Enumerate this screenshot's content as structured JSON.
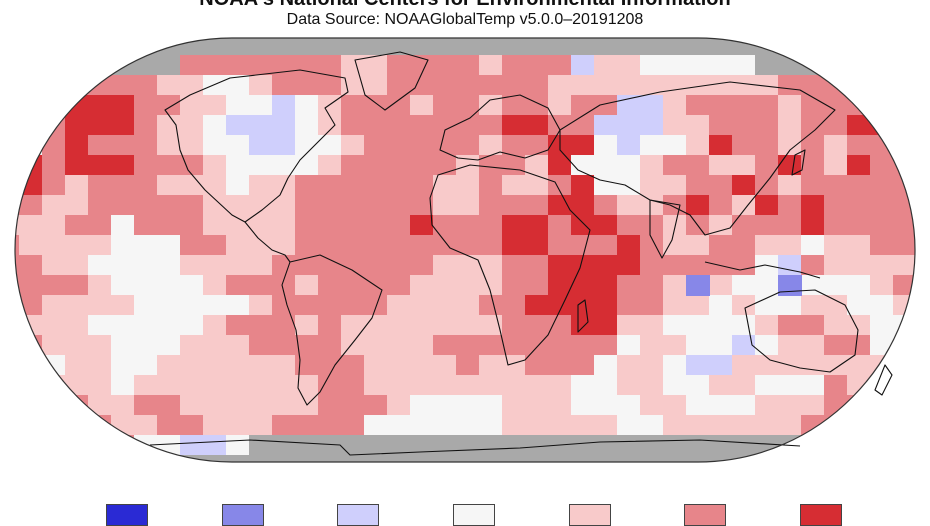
{
  "header": {
    "title": "NOAA's National Centers for Environmental Information",
    "subtitle": "Data Source: NOAAGlobalTemp v5.0.0–20191208"
  },
  "map": {
    "projection": "robinson",
    "missing_data_color": "#a9a9a9",
    "ocean_outline_color": "#222222",
    "palette": {
      "-3": "#2a2ad4",
      "-2": "#8787e8",
      "-1": "#cfcffc",
      "0": "#f6f6f6",
      "1": "#f8caca",
      "2": "#e7858a",
      "3": "#d62d33"
    }
  },
  "legend": {
    "swatches": [
      {
        "id": "much-cooler",
        "color": "#2a2ad4"
      },
      {
        "id": "cooler",
        "color": "#8787e8"
      },
      {
        "id": "slightly-cooler",
        "color": "#cfcffc"
      },
      {
        "id": "near-average",
        "color": "#f6f6f6"
      },
      {
        "id": "slightly-warmer",
        "color": "#f8caca"
      },
      {
        "id": "warmer",
        "color": "#e7858a"
      },
      {
        "id": "much-warmer",
        "color": "#d62d33"
      }
    ]
  }
}
